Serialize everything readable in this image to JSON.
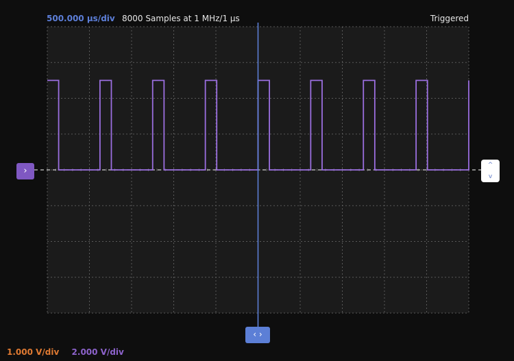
{
  "header": {
    "timebase": "500.000 µs/div",
    "samples": "8000 Samples at 1 MHz/1 µs",
    "trigger_status": "Triggered"
  },
  "footer": {
    "ch1_scale": "1.000 V/div",
    "ch2_scale": "2.000 V/div"
  },
  "markers": {
    "left_icon": "chevron-right-icon",
    "right_icons": [
      "chevron-up-icon",
      "chevron-down-icon"
    ],
    "bottom_icon": "chevron-left-right-icon",
    "left_glyph": "›",
    "right_up_glyph": "^",
    "right_down_glyph": "v",
    "bottom_glyph": "‹ ›"
  },
  "colors": {
    "background": "#0e0e0e",
    "grid": "#5a5a5a",
    "trace_ch2": "#9b6fe0",
    "trigger_level": "#cfcfcf",
    "cursor": "#5c7fd6",
    "ch1": "#e07a32",
    "timebase": "#5d7fd9"
  },
  "chart_data": {
    "type": "line",
    "grid_divisions": {
      "x": 10,
      "y": 8
    },
    "y_range_div": [
      -4,
      4
    ],
    "series": [
      {
        "trace": "ch2",
        "waveform": "pulse",
        "high_level_div": 2.5,
        "low_level_div": 0,
        "period_div": 1.25,
        "pulse_width_div": 0.27,
        "first_rise_div": 1.25,
        "leading_high_until_div": 0.27,
        "pulse_count": 8
      }
    ],
    "trigger_level_div": 0,
    "cursor_x_div": 5,
    "grid": true
  }
}
